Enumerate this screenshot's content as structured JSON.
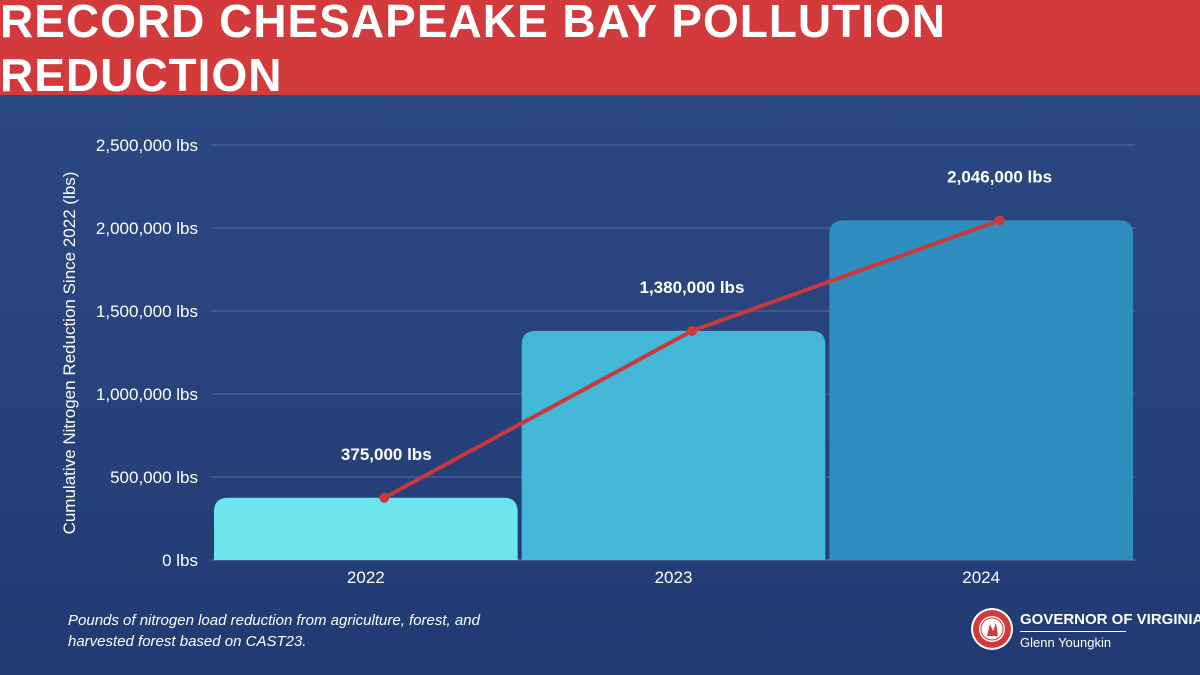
{
  "title": "RECORD CHESAPEAKE BAY POLLUTION REDUCTION",
  "colors": {
    "banner": "#d23a3c",
    "background": "#27427c",
    "line": "#c8393d",
    "bars": [
      "#6ee4ec",
      "#42b7d8",
      "#2f8ec0"
    ]
  },
  "chart_data": {
    "type": "bar",
    "categories": [
      "2022",
      "2023",
      "2024"
    ],
    "values": [
      375000,
      1380000,
      2046000
    ],
    "data_labels": [
      "375,000 lbs",
      "1,380,000 lbs",
      "2,046,000 lbs"
    ],
    "overlay_line": true,
    "ylabel": "Cumulative Nitrogen Reduction Since 2022 (lbs)",
    "xlabel": "",
    "ylim": [
      0,
      2500000
    ],
    "yticks": [
      0,
      500000,
      1000000,
      1500000,
      2000000,
      2500000
    ],
    "ytick_labels": [
      "0 lbs",
      "500,000 lbs",
      "1,000,000 lbs",
      "1,500,000 lbs",
      "2,000,000 lbs",
      "2,500,000 lbs"
    ],
    "grid": true
  },
  "footnote": {
    "line1": "Pounds of nitrogen load reduction from agriculture, forest, and",
    "line2": "harvested forest based on CAST23."
  },
  "brand": {
    "title": "GOVERNOR OF VIRGINIA",
    "subtitle": "Glenn Youngkin"
  }
}
